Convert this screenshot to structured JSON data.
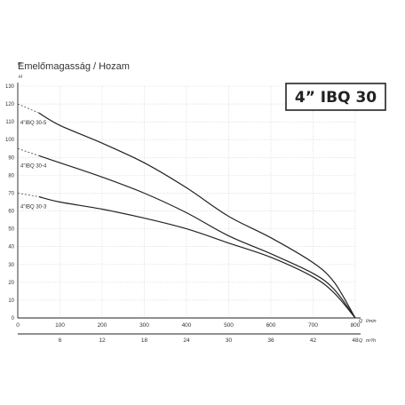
{
  "chart_data": {
    "type": "line",
    "title": "Emelőmagasság / Hozam",
    "model_label": "4” IBQ 30",
    "ylabel": "H",
    "yunit": "m",
    "ylim": [
      0,
      130
    ],
    "yticks": [
      0,
      10,
      20,
      30,
      40,
      50,
      60,
      70,
      80,
      90,
      100,
      110,
      120,
      130
    ],
    "xlim": [
      0,
      800
    ],
    "xticks": [
      0,
      100,
      200,
      300,
      400,
      500,
      600,
      700,
      800
    ],
    "xlabel": "Q",
    "xunit": "l/min",
    "x2ticks": [
      {
        "q": 100,
        "label": "6"
      },
      {
        "q": 200,
        "label": "12"
      },
      {
        "q": 300,
        "label": "18"
      },
      {
        "q": 400,
        "label": "24"
      },
      {
        "q": 500,
        "label": "30"
      },
      {
        "q": 600,
        "label": "36"
      },
      {
        "q": 700,
        "label": "42"
      },
      {
        "q": 800,
        "label": "48"
      }
    ],
    "x2label": "Q",
    "x2unit": "m³/h",
    "grid": true,
    "series": [
      {
        "name": "4”IBQ 30-5",
        "shutoff": 120,
        "x": [
          50,
          100,
          200,
          300,
          400,
          500,
          600,
          700,
          750,
          800
        ],
        "y": [
          115,
          108,
          98,
          87,
          73,
          57,
          45,
          31,
          20,
          0
        ]
      },
      {
        "name": "4”IBQ 30-4",
        "shutoff": 95,
        "x": [
          50,
          100,
          200,
          300,
          400,
          500,
          600,
          700,
          750,
          800
        ],
        "y": [
          91,
          87,
          79,
          70,
          59,
          46,
          36,
          25,
          16,
          0
        ]
      },
      {
        "name": "4”IBQ 30-3",
        "shutoff": 70,
        "x": [
          50,
          100,
          200,
          300,
          400,
          500,
          600,
          700,
          750,
          800
        ],
        "y": [
          68,
          65,
          61,
          56,
          50,
          42,
          34,
          23,
          14,
          0
        ]
      }
    ]
  }
}
